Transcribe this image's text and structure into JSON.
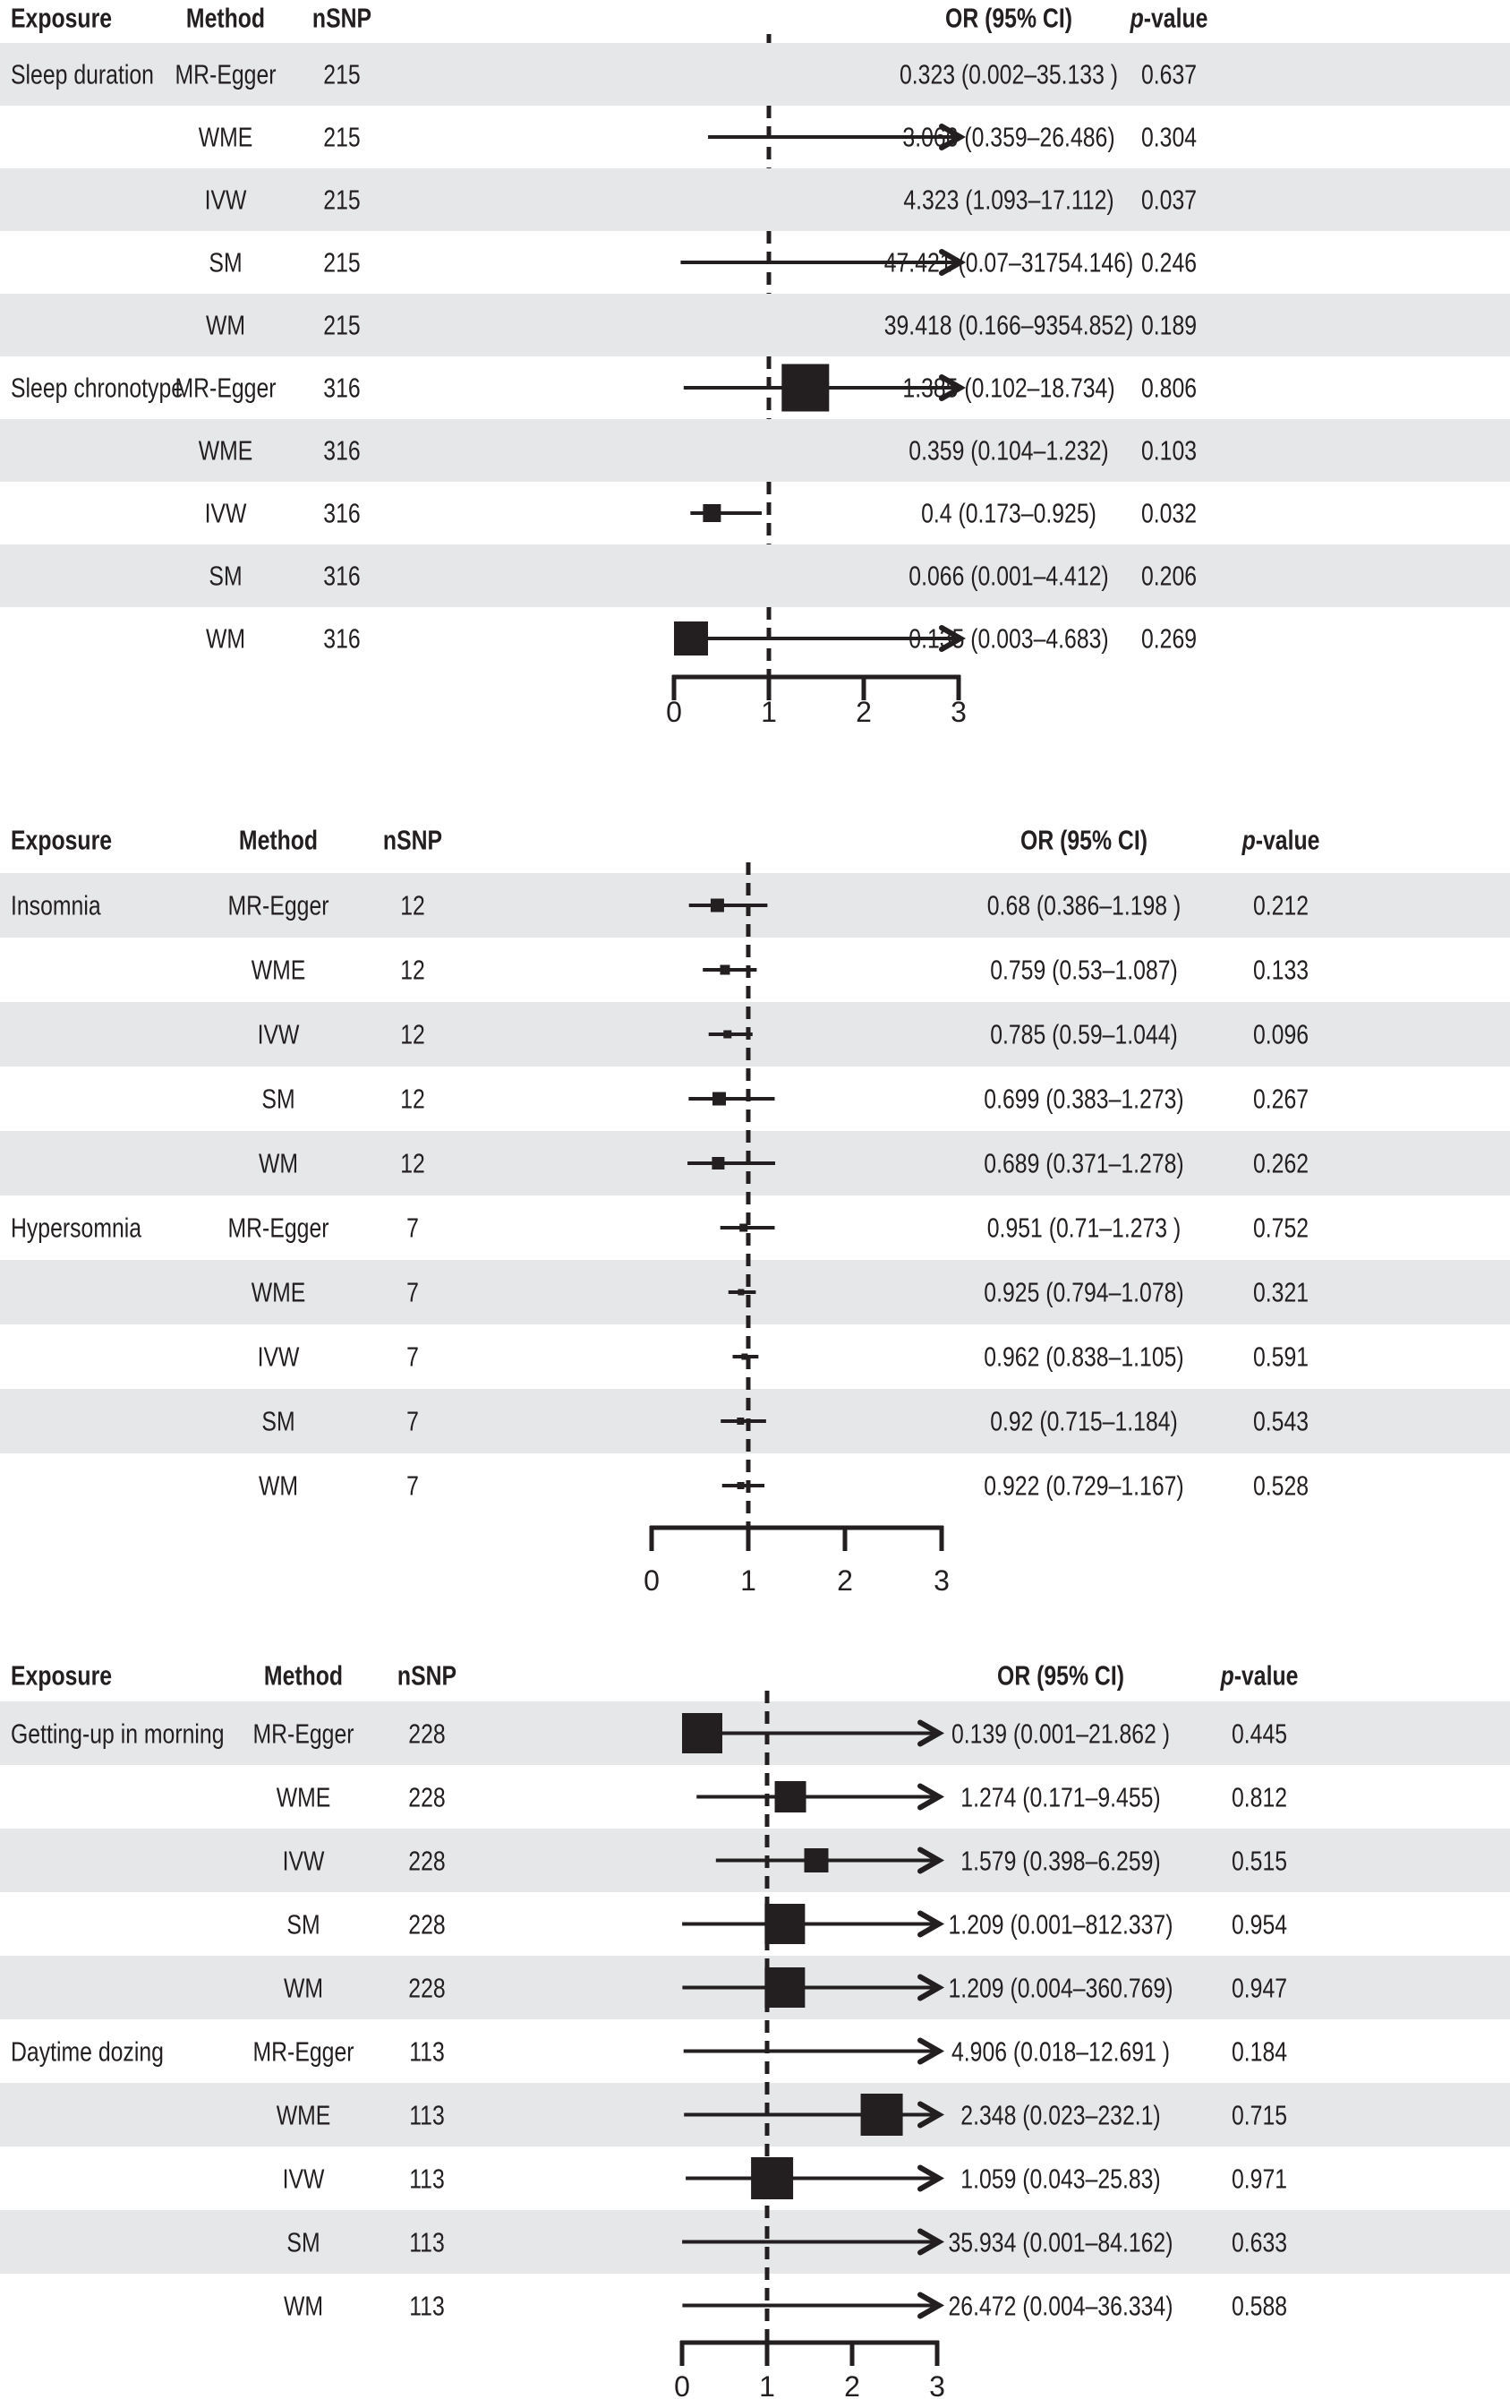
{
  "figure": {
    "ink_color": "#231f20",
    "stripe_color": "#e6e7e8",
    "background": "#ffffff"
  },
  "chart_data": [
    {
      "type": "forest",
      "columns": {
        "exposure": "Exposure",
        "method": "Method",
        "nsnp": "nSNP",
        "or": "OR (95% CI)",
        "p_italic": "p",
        "p_rest": "-value"
      },
      "x_axis": {
        "tick_labels": [
          "0",
          "1",
          "2",
          "3"
        ],
        "range": [
          0,
          3
        ],
        "reference_line": 1,
        "grid": false
      },
      "rows": [
        {
          "exposure": "Sleep duration",
          "method": "MR-Egger",
          "nsnp": "215",
          "or": 0.323,
          "ci_low": 0.002,
          "ci_high": 35.133,
          "or_text": "0.323 (0.002–35.133 )",
          "p": "0.637"
        },
        {
          "exposure": "",
          "method": "WME",
          "nsnp": "215",
          "or": 3.066,
          "ci_low": 0.359,
          "ci_high": 26.486,
          "or_text": "3.066 (0.359–26.486)",
          "p": "0.304"
        },
        {
          "exposure": "",
          "method": "IVW",
          "nsnp": "215",
          "or": 4.323,
          "ci_low": 1.093,
          "ci_high": 17.112,
          "or_text": "4.323 (1.093–17.112)",
          "p": "0.037"
        },
        {
          "exposure": "",
          "method": "SM",
          "nsnp": "215",
          "or": 47.421,
          "ci_low": 0.07,
          "ci_high": 31754.146,
          "or_text": "47.421 (0.07–31754.146)",
          "p": "0.246"
        },
        {
          "exposure": "",
          "method": "WM",
          "nsnp": "215",
          "or": 39.418,
          "ci_low": 0.166,
          "ci_high": 9354.852,
          "or_text": "39.418 (0.166–9354.852)",
          "p": "0.189"
        },
        {
          "exposure": "Sleep chronotype",
          "method": "MR-Egger",
          "nsnp": "316",
          "or": 1.385,
          "ci_low": 0.102,
          "ci_high": 18.734,
          "or_text": "1.385 (0.102–18.734)",
          "p": "0.806"
        },
        {
          "exposure": "",
          "method": "WME",
          "nsnp": "316",
          "or": 0.359,
          "ci_low": 0.104,
          "ci_high": 1.232,
          "or_text": "0.359 (0.104–1.232)",
          "p": "0.103"
        },
        {
          "exposure": "",
          "method": "IVW",
          "nsnp": "316",
          "or": 0.4,
          "ci_low": 0.173,
          "ci_high": 0.925,
          "or_text": "0.4 (0.173–0.925)",
          "p": "0.032"
        },
        {
          "exposure": "",
          "method": "SM",
          "nsnp": "316",
          "or": 0.066,
          "ci_low": 0.001,
          "ci_high": 4.412,
          "or_text": "0.066 (0.001–4.412)",
          "p": "0.206"
        },
        {
          "exposure": "",
          "method": "WM",
          "nsnp": "316",
          "or": 0.135,
          "ci_low": 0.003,
          "ci_high": 4.683,
          "or_text": "0.135 (0.003–4.683)",
          "p": "0.269"
        }
      ]
    },
    {
      "type": "forest",
      "columns": {
        "exposure": "Exposure",
        "method": "Method",
        "nsnp": "nSNP",
        "or": "OR (95% CI)",
        "p_italic": "p",
        "p_rest": "-value"
      },
      "x_axis": {
        "tick_labels": [
          "0",
          "1",
          "2",
          "3"
        ],
        "range": [
          0,
          3
        ],
        "reference_line": 1,
        "grid": false
      },
      "rows": [
        {
          "exposure": "Insomnia",
          "method": "MR-Egger",
          "nsnp": "12",
          "or": 0.68,
          "ci_low": 0.386,
          "ci_high": 1.198,
          "or_text": "0.68 (0.386–1.198 )",
          "p": "0.212"
        },
        {
          "exposure": "",
          "method": "WME",
          "nsnp": "12",
          "or": 0.759,
          "ci_low": 0.53,
          "ci_high": 1.087,
          "or_text": "0.759 (0.53–1.087)",
          "p": "0.133"
        },
        {
          "exposure": "",
          "method": "IVW",
          "nsnp": "12",
          "or": 0.785,
          "ci_low": 0.59,
          "ci_high": 1.044,
          "or_text": "0.785 (0.59–1.044)",
          "p": "0.096"
        },
        {
          "exposure": "",
          "method": "SM",
          "nsnp": "12",
          "or": 0.699,
          "ci_low": 0.383,
          "ci_high": 1.273,
          "or_text": "0.699 (0.383–1.273)",
          "p": "0.267"
        },
        {
          "exposure": "",
          "method": "WM",
          "nsnp": "12",
          "or": 0.689,
          "ci_low": 0.371,
          "ci_high": 1.278,
          "or_text": "0.689 (0.371–1.278)",
          "p": "0.262"
        },
        {
          "exposure": "Hypersomnia",
          "method": "MR-Egger",
          "nsnp": "7",
          "or": 0.951,
          "ci_low": 0.71,
          "ci_high": 1.273,
          "or_text": "0.951 (0.71–1.273 )",
          "p": "0.752"
        },
        {
          "exposure": "",
          "method": "WME",
          "nsnp": "7",
          "or": 0.925,
          "ci_low": 0.794,
          "ci_high": 1.078,
          "or_text": "0.925 (0.794–1.078)",
          "p": "0.321"
        },
        {
          "exposure": "",
          "method": "IVW",
          "nsnp": "7",
          "or": 0.962,
          "ci_low": 0.838,
          "ci_high": 1.105,
          "or_text": "0.962 (0.838–1.105)",
          "p": "0.591"
        },
        {
          "exposure": "",
          "method": "SM",
          "nsnp": "7",
          "or": 0.92,
          "ci_low": 0.715,
          "ci_high": 1.184,
          "or_text": "0.92 (0.715–1.184)",
          "p": "0.543"
        },
        {
          "exposure": "",
          "method": "WM",
          "nsnp": "7",
          "or": 0.922,
          "ci_low": 0.729,
          "ci_high": 1.167,
          "or_text": "0.922 (0.729–1.167)",
          "p": "0.528"
        }
      ]
    },
    {
      "type": "forest",
      "columns": {
        "exposure": "Exposure",
        "method": "Method",
        "nsnp": "nSNP",
        "or": "OR (95% CI)",
        "p_italic": "p",
        "p_rest": "-value"
      },
      "x_axis": {
        "tick_labels": [
          "0",
          "1",
          "2",
          "3"
        ],
        "range": [
          0,
          3
        ],
        "reference_line": 1,
        "grid": false
      },
      "rows": [
        {
          "exposure": "Getting-up in morning",
          "method": "MR-Egger",
          "nsnp": "228",
          "or": 0.139,
          "ci_low": 0.001,
          "ci_high": 21.862,
          "or_text": "0.139 (0.001–21.862 )",
          "p": "0.445"
        },
        {
          "exposure": "",
          "method": "WME",
          "nsnp": "228",
          "or": 1.274,
          "ci_low": 0.171,
          "ci_high": 9.455,
          "or_text": "1.274 (0.171–9.455)",
          "p": "0.812"
        },
        {
          "exposure": "",
          "method": "IVW",
          "nsnp": "228",
          "or": 1.579,
          "ci_low": 0.398,
          "ci_high": 6.259,
          "or_text": "1.579 (0.398–6.259)",
          "p": "0.515"
        },
        {
          "exposure": "",
          "method": "SM",
          "nsnp": "228",
          "or": 1.209,
          "ci_low": 0.001,
          "ci_high": 812.337,
          "or_text": "1.209 (0.001–812.337)",
          "p": "0.954"
        },
        {
          "exposure": "",
          "method": "WM",
          "nsnp": "228",
          "or": 1.209,
          "ci_low": 0.004,
          "ci_high": 360.769,
          "or_text": "1.209 (0.004–360.769)",
          "p": "0.947"
        },
        {
          "exposure": "Daytime dozing",
          "method": "MR-Egger",
          "nsnp": "113",
          "or": 4.906,
          "ci_low": 0.018,
          "ci_high": 12.691,
          "or_text": "4.906 (0.018–12.691 )",
          "p": "0.184"
        },
        {
          "exposure": "",
          "method": "WME",
          "nsnp": "113",
          "or": 2.348,
          "ci_low": 0.023,
          "ci_high": 232.1,
          "or_text": "2.348 (0.023–232.1)",
          "p": "0.715"
        },
        {
          "exposure": "",
          "method": "IVW",
          "nsnp": "113",
          "or": 1.059,
          "ci_low": 0.043,
          "ci_high": 25.83,
          "or_text": "1.059 (0.043–25.83)",
          "p": "0.971"
        },
        {
          "exposure": "",
          "method": "SM",
          "nsnp": "113",
          "or": 35.934,
          "ci_low": 0.001,
          "ci_high": 84.162,
          "or_text": "35.934 (0.001–84.162)",
          "p": "0.633"
        },
        {
          "exposure": "",
          "method": "WM",
          "nsnp": "113",
          "or": 26.472,
          "ci_low": 0.004,
          "ci_high": 36.334,
          "or_text": "26.472 (0.004–36.334)",
          "p": "0.588"
        }
      ]
    }
  ]
}
